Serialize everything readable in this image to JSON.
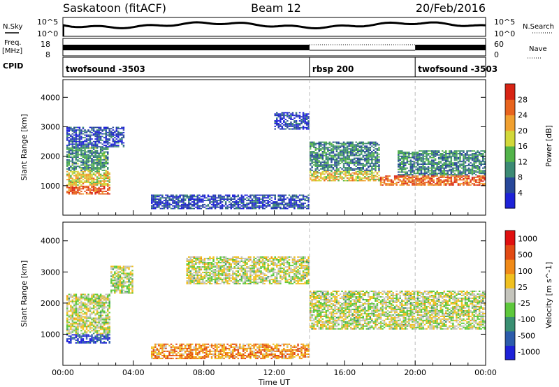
{
  "header": {
    "title": "Saskatoon (fitACF)",
    "beam": "Beam 12",
    "date": "20/Feb/2016"
  },
  "side_labels": {
    "nsky": "N.Sky",
    "freq_top": "Freq.",
    "freq_unit": "[MHz]",
    "cpid": "CPID",
    "nsearch": "N.Search",
    "nave": "Nave"
  },
  "top_axes": {
    "nsky_ticks": [
      "10^5",
      "10^0"
    ],
    "nsearch_ticks": [
      "10^5",
      "10^0"
    ],
    "freq_ticks": [
      "18",
      "8"
    ],
    "nave_ticks": [
      "60",
      "0"
    ]
  },
  "cpid_segments": [
    {
      "start": 0,
      "end": 14,
      "label": "twofsound -3503"
    },
    {
      "start": 14,
      "end": 20,
      "label": "rbsp 200"
    },
    {
      "start": 20,
      "end": 24,
      "label": "twofsound -3503"
    }
  ],
  "chart_data": [
    {
      "type": "heatmap",
      "title": "Power",
      "xlabel": "",
      "ylabel": "Slant Range [km]",
      "xlim": [
        0,
        24
      ],
      "ylim": [
        0,
        4600
      ],
      "yticks": [
        "1000",
        "2000",
        "3000",
        "4000"
      ],
      "colorbar": {
        "label": "Power [dB]",
        "ticks": [
          "4",
          "8",
          "12",
          "16",
          "20",
          "24",
          "28"
        ],
        "colors": [
          "#1e22d8",
          "#28489a",
          "#3c8a74",
          "#52b34a",
          "#d2d83a",
          "#f0a030",
          "#e8641e",
          "#d82414"
        ]
      },
      "regions": [
        {
          "t": [
            0.2,
            2.7
          ],
          "r": [
            700,
            1000
          ],
          "level": 0.85
        },
        {
          "t": [
            0.2,
            2.7
          ],
          "r": [
            1000,
            1500
          ],
          "level": 0.6
        },
        {
          "t": [
            0.2,
            2.6
          ],
          "r": [
            1500,
            2300
          ],
          "level": 0.35
        },
        {
          "t": [
            0.2,
            3.5
          ],
          "r": [
            2300,
            3000
          ],
          "level": 0.15
        },
        {
          "t": [
            5.0,
            14.0
          ],
          "r": [
            200,
            700
          ],
          "level": 0.15
        },
        {
          "t": [
            14.0,
            18.0
          ],
          "r": [
            1150,
            1500
          ],
          "level": 0.6
        },
        {
          "t": [
            14.0,
            18.0
          ],
          "r": [
            1500,
            2500
          ],
          "level": 0.3
        },
        {
          "t": [
            18.0,
            24.0
          ],
          "r": [
            1000,
            1350
          ],
          "level": 0.8
        },
        {
          "t": [
            19.0,
            24.0
          ],
          "r": [
            1350,
            2200
          ],
          "level": 0.3
        },
        {
          "t": [
            12.0,
            14.0
          ],
          "r": [
            2900,
            3500
          ],
          "level": 0.12
        }
      ]
    },
    {
      "type": "heatmap",
      "title": "Velocity",
      "xlabel": "Time UT",
      "ylabel": "Slant Range [km]",
      "xlim": [
        0,
        24
      ],
      "ylim": [
        0,
        4600
      ],
      "xticks": [
        "00:00",
        "04:00",
        "08:00",
        "12:00",
        "16:00",
        "20:00",
        "00:00"
      ],
      "yticks": [
        "1000",
        "2000",
        "3000",
        "4000"
      ],
      "colorbar": {
        "label": "Velocity [m s^-1]",
        "ticks": [
          "1000",
          "500",
          "100",
          "25",
          "-25",
          "-100",
          "-500",
          "-1000"
        ],
        "colors": [
          "#1e22d8",
          "#2c5cab",
          "#3a8f72",
          "#5ec83c",
          "#c4c4bc",
          "#f0c020",
          "#f08a18",
          "#e24a14",
          "#e01010"
        ]
      },
      "regions": [
        {
          "t": [
            0.2,
            2.7
          ],
          "r": [
            700,
            1000
          ],
          "level": 0.1
        },
        {
          "t": [
            0.2,
            2.7
          ],
          "r": [
            1000,
            2300
          ],
          "level": 0.5
        },
        {
          "t": [
            2.7,
            4.0
          ],
          "r": [
            2300,
            3200
          ],
          "level": 0.5
        },
        {
          "t": [
            5.0,
            14.0
          ],
          "r": [
            200,
            700
          ],
          "level": 0.7
        },
        {
          "t": [
            14.0,
            24.0
          ],
          "r": [
            1150,
            2400
          ],
          "level": 0.5
        },
        {
          "t": [
            7.0,
            14.0
          ],
          "r": [
            2600,
            3500
          ],
          "level": 0.5
        }
      ]
    }
  ]
}
